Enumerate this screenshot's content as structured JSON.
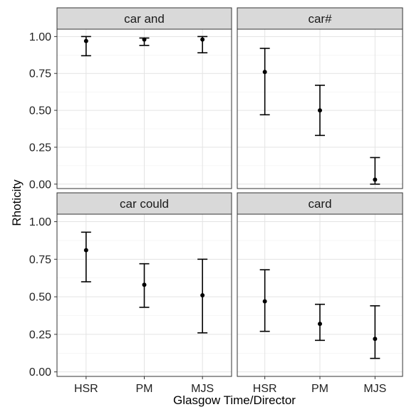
{
  "chart_data": {
    "type": "errorbar",
    "xlabel": "Glasgow Time/Director",
    "ylabel": "Rhoticity",
    "categories": [
      "HSR",
      "PM",
      "MJS"
    ],
    "ylim": [
      -0.03,
      1.05
    ],
    "yticks": [
      "0.00",
      "0.25",
      "0.50",
      "0.75",
      "1.00"
    ],
    "grid": true,
    "panels": [
      {
        "title": "car and",
        "points": [
          {
            "x": "HSR",
            "y": 0.97,
            "ymin": 0.87,
            "ymax": 1.0
          },
          {
            "x": "PM",
            "y": 0.98,
            "ymin": 0.94,
            "ymax": 0.99
          },
          {
            "x": "MJS",
            "y": 0.98,
            "ymin": 0.89,
            "ymax": 1.0
          }
        ]
      },
      {
        "title": "car#",
        "points": [
          {
            "x": "HSR",
            "y": 0.76,
            "ymin": 0.47,
            "ymax": 0.92
          },
          {
            "x": "PM",
            "y": 0.5,
            "ymin": 0.33,
            "ymax": 0.67
          },
          {
            "x": "MJS",
            "y": 0.03,
            "ymin": 0.0,
            "ymax": 0.18
          }
        ]
      },
      {
        "title": "car could",
        "points": [
          {
            "x": "HSR",
            "y": 0.81,
            "ymin": 0.6,
            "ymax": 0.93
          },
          {
            "x": "PM",
            "y": 0.58,
            "ymin": 0.43,
            "ymax": 0.72
          },
          {
            "x": "MJS",
            "y": 0.51,
            "ymin": 0.26,
            "ymax": 0.75
          }
        ]
      },
      {
        "title": "card",
        "points": [
          {
            "x": "HSR",
            "y": 0.47,
            "ymin": 0.27,
            "ymax": 0.68
          },
          {
            "x": "PM",
            "y": 0.32,
            "ymin": 0.21,
            "ymax": 0.45
          },
          {
            "x": "MJS",
            "y": 0.22,
            "ymin": 0.09,
            "ymax": 0.44
          }
        ]
      }
    ]
  }
}
